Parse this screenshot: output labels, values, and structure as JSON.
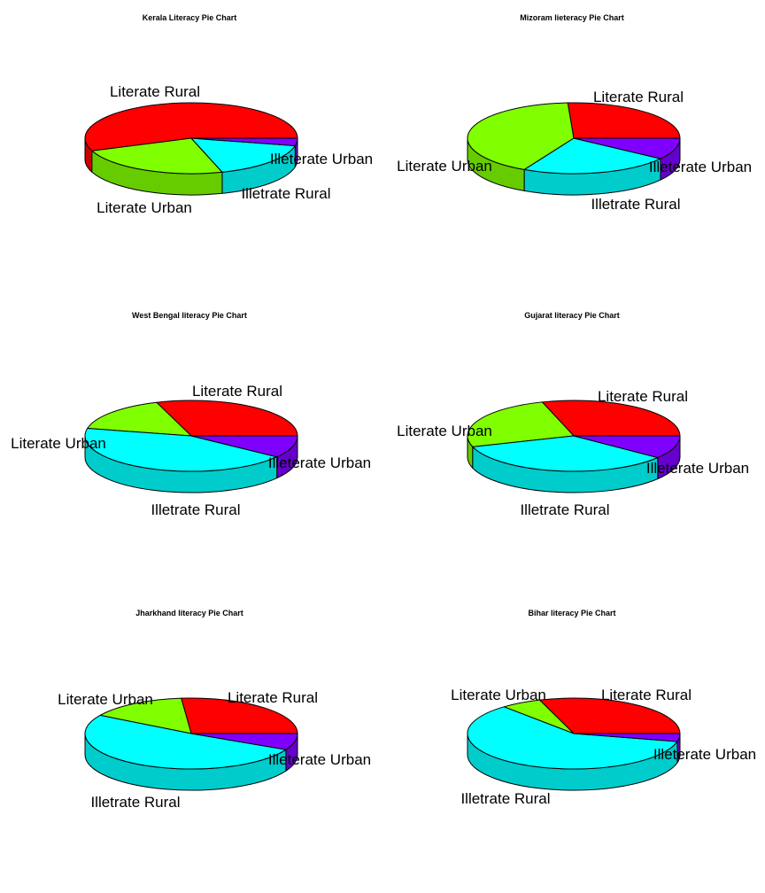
{
  "figure": {
    "colors": {
      "Literate Rural": {
        "top": "#ff0000",
        "side": "#cc0000"
      },
      "Literate Urban": {
        "top": "#80ff00",
        "side": "#66cc00"
      },
      "Illetrate Rural": {
        "top": "#00ffff",
        "side": "#00cccc"
      },
      "Illeterate Urban": {
        "top": "#8000ff",
        "side": "#6600cc"
      }
    }
  },
  "chart_data": [
    {
      "type": "pie",
      "title": "Kerala Literacy  Pie Chart",
      "labels": [
        "Literate Rural",
        "Literate Urban",
        "Illetrate Rural",
        "Illeterate Urban"
      ],
      "values": [
        55.8,
        23.9,
        16.9,
        3.4
      ],
      "explode": false
    },
    {
      "type": "pie",
      "title": "Mizoram lieteracy Pie Chart",
      "labels": [
        "Literate Rural",
        "Literate Urban",
        "Illetrate Rural",
        "Illeterate Urban"
      ],
      "values": [
        25.9,
        41.4,
        22.9,
        9.8
      ],
      "explode": false
    },
    {
      "type": "pie",
      "title": "West Bengal literacy Pie Chart",
      "labels": [
        "Literate Rural",
        "Literate Urban",
        "Illetrate Rural",
        "Illeterate Urban"
      ],
      "values": [
        30.3,
        16.3,
        43.3,
        10.1
      ],
      "explode": false
    },
    {
      "type": "pie",
      "title": "Gujarat literacy Pie Chart",
      "labels": [
        "Literate Rural",
        "Literate Urban",
        "Illetrate Rural",
        "Illeterate Urban"
      ],
      "values": [
        29.8,
        25.2,
        34.5,
        10.5
      ],
      "explode": false
    },
    {
      "type": "pie",
      "title": "Jharkhand literacy Pie Chart",
      "labels": [
        "Literate Rural",
        "Literate Urban",
        "Illetrate Rural",
        "Illeterate Urban"
      ],
      "values": [
        26.5,
        14.9,
        51.1,
        7.5
      ],
      "explode": false
    },
    {
      "type": "pie",
      "title": "Bihar literacy Pie Chart",
      "labels": [
        "Literate Rural",
        "Literate Urban",
        "Illetrate Rural",
        "Illeterate Urban"
      ],
      "values": [
        30.2,
        6.2,
        60.0,
        3.6
      ],
      "explode": false
    }
  ]
}
